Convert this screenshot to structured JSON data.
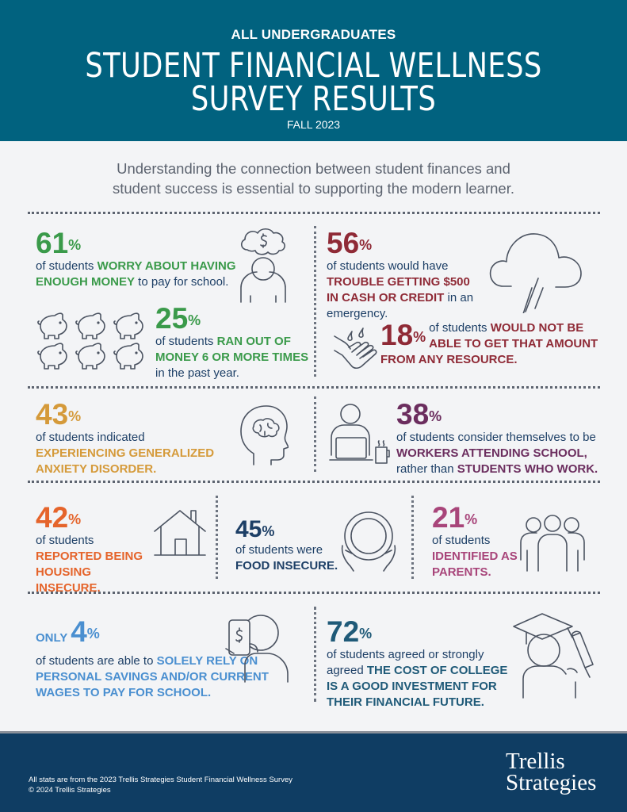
{
  "header": {
    "kicker": "ALL UNDERGRADUATES",
    "title_line1": "STUDENT FINANCIAL WELLNESS",
    "title_line2": "SURVEY RESULTS",
    "term": "FALL 2023"
  },
  "intro": {
    "line1": "Understanding the connection between student finances and",
    "line2": "student success is essential to supporting the modern learner."
  },
  "colors": {
    "header": "#01627f",
    "footer": "#0f3d63",
    "green": "#3a9a4a",
    "red": "#8f2a36",
    "gold": "#d59a3a",
    "purple": "#6b2d5e",
    "orange": "#e5642b",
    "navy": "#1d3f66",
    "magenta": "#a8457a",
    "blue": "#4a8fd0"
  },
  "stats": {
    "worry": {
      "value": "61",
      "pct": "%",
      "t1": "of students ",
      "h1": "WORRY ABOUT HAVING ENOUGH MONEY",
      "t2": " to pay for school.",
      "icon": "worried-person-icon"
    },
    "ranout": {
      "value": "25",
      "pct": "%",
      "t1": "of students ",
      "h1": "RAN OUT OF MONEY 6 OR MORE TIMES",
      "t2": " in the past year.",
      "icon": "piggy-bank-icon"
    },
    "trouble500": {
      "value": "56",
      "pct": "%",
      "t1": "of students would have ",
      "h1": "TROUBLE GETTING $500 IN CASH OR CREDIT",
      "t2": " in an emergency.",
      "icon": "rain-cloud-icon"
    },
    "noresource": {
      "value": "18",
      "pct": "%",
      "t1": " of students ",
      "h1": "WOULD NOT BE ABLE TO GET THAT AMOUNT FROM ANY RESOURCE.",
      "icon": "hand-drops-icon"
    },
    "anxiety": {
      "value": "43",
      "pct": "%",
      "t1": "of students indicated ",
      "h1": "EXPERIENCING GENERALIZED ANXIETY DISORDER.",
      "icon": "brain-head-icon"
    },
    "workers": {
      "value": "38",
      "pct": "%",
      "t1": "of students consider themselves to be ",
      "h1": "WORKERS ATTENDING SCHOOL,",
      "t2": " rather than ",
      "h2": "STUDENTS WHO WORK.",
      "icon": "worker-laptop-icon"
    },
    "housing": {
      "value": "42",
      "pct": "%",
      "t1": "of students ",
      "h1": "REPORTED BEING HOUSING INSECURE.",
      "icon": "house-icon"
    },
    "food": {
      "value": "45",
      "pct": "%",
      "t1": "of students were ",
      "h1": "FOOD INSECURE.",
      "icon": "empty-plate-icon"
    },
    "parents": {
      "value": "21",
      "pct": "%",
      "t1": "of students ",
      "h1": "IDENTIFIED AS PARENTS.",
      "icon": "family-icon"
    },
    "savings": {
      "prefix": "ONLY ",
      "value": "4",
      "pct": "%",
      "t1": "of students are able to ",
      "h1": "SOLELY RELY ON PERSONAL SAVINGS AND/OR CURRENT WAGES TO PAY FOR SCHOOL.",
      "icon": "phone-payment-icon"
    },
    "investment": {
      "value": "72",
      "pct": "%",
      "t1": "of students agreed or strongly agreed ",
      "h1": "THE COST OF COLLEGE IS A GOOD INVESTMENT FOR THEIR FINANCIAL FUTURE.",
      "icon": "graduate-icon"
    }
  },
  "footer": {
    "note1": "All stats are from the 2023 Trellis Strategies Student Financial Wellness Survey",
    "note2": "© 2024 Trellis Strategies",
    "logo_line1": "Trellis",
    "logo_line2": "Strategies"
  }
}
